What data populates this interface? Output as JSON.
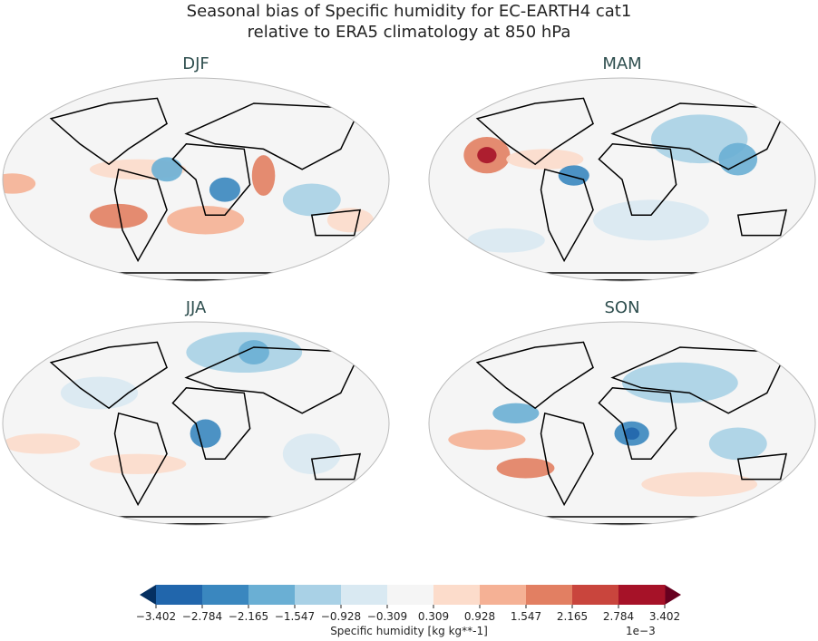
{
  "title_line1": "Seasonal bias of Specific humidity for EC-EARTH4 cat1",
  "title_line2": "relative to ERA5 climatology at 850 hPa",
  "chart_data": {
    "type": "heatmap",
    "projection": "Robinson",
    "panels": [
      {
        "title": "DJF",
        "dominant": "red bias tropical Pacific/Atlantic south of equator, blue over central Africa and S. America"
      },
      {
        "title": "MAM",
        "dominant": "strong red maximum in eastern tropical Pacific, blue over Asia and Indian Ocean"
      },
      {
        "title": "JJA",
        "dominant": "blue over central Africa and Asia, weak red in subtropical oceans"
      },
      {
        "title": "SON",
        "dominant": "blue over central Africa and South Asia, red in tropical Pacific"
      }
    ],
    "colorbar": {
      "label": "Specific humidity [kg kg**-1]",
      "scale_label": "1e−3",
      "ticks": [
        "−3.402",
        "−2.784",
        "−2.165",
        "−1.547",
        "−0.928",
        "−0.309",
        "0.309",
        "0.928",
        "1.547",
        "2.165",
        "2.784",
        "3.402"
      ],
      "colormap": "RdBu_r",
      "extend": "both",
      "colors": [
        "#053061",
        "#2166ac",
        "#3a87bf",
        "#6aafd4",
        "#a9d1e6",
        "#d9e9f2",
        "#f5f5f5",
        "#fcdccb",
        "#f5b195",
        "#e27f62",
        "#c9453d",
        "#a61228",
        "#67001f"
      ]
    }
  }
}
